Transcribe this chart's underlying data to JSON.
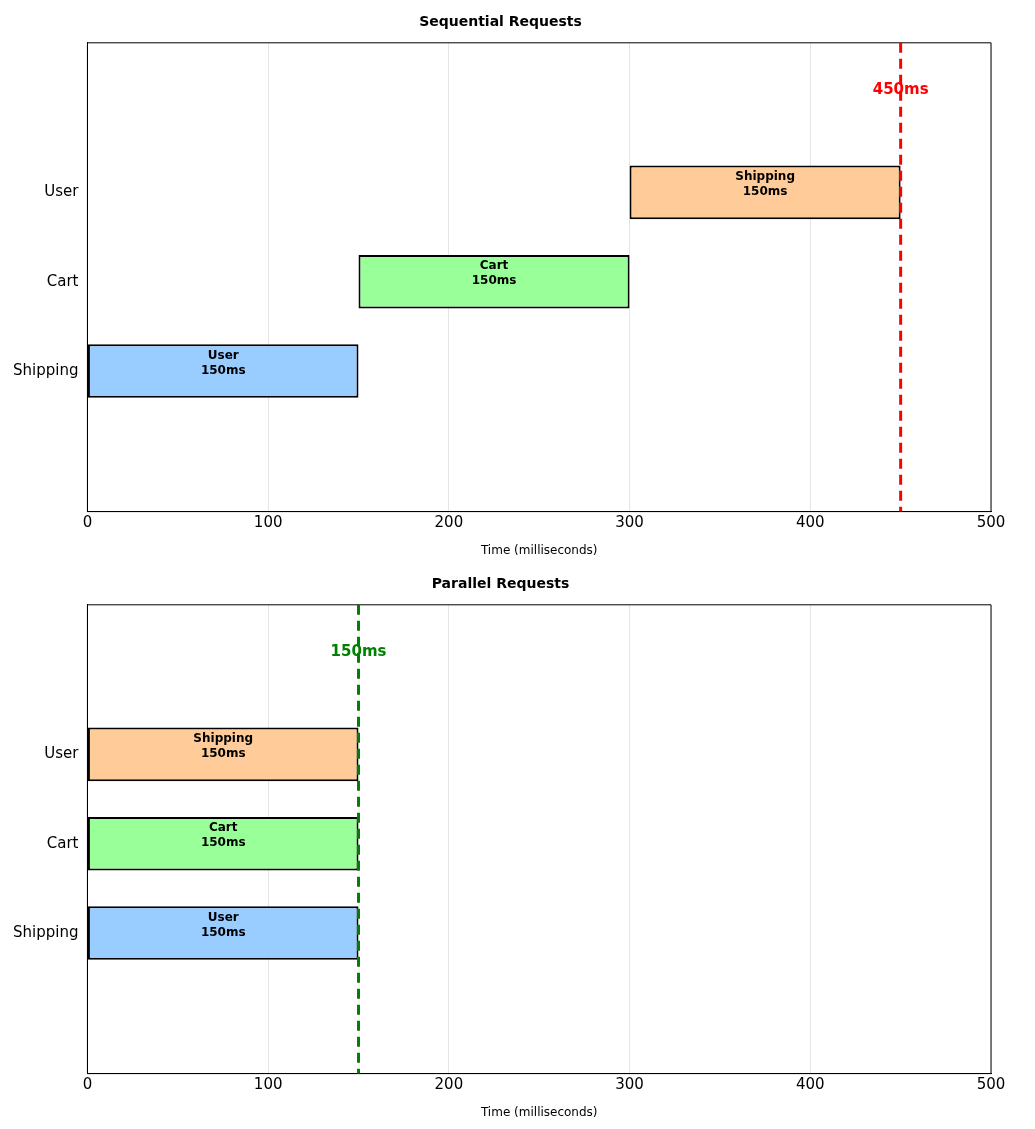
{
  "chart_data": [
    {
      "type": "bar",
      "orientation": "horizontal",
      "title": "Sequential Requests",
      "xlabel": "Time (milliseconds)",
      "categories": [
        "User",
        "Cart",
        "Shipping"
      ],
      "values": [
        150,
        150,
        150
      ],
      "base": [
        300,
        150,
        0
      ],
      "colors": [
        "#ffcc99",
        "#99ff99",
        "#99ccff"
      ],
      "value_labels": [
        "Shipping\n150ms",
        "Cart\n150ms",
        "User\n150ms"
      ],
      "xlim": [
        0,
        500
      ],
      "xticks": [
        0,
        100,
        200,
        300,
        400,
        500
      ],
      "grid": "x",
      "legend": false,
      "ref_lines": [
        {
          "axis": "x",
          "value": 450,
          "label": "450ms",
          "color": "#ff0000",
          "line_style": "dashed"
        }
      ]
    },
    {
      "type": "bar",
      "orientation": "horizontal",
      "title": "Parallel Requests",
      "xlabel": "Time (milliseconds)",
      "categories": [
        "User",
        "Cart",
        "Shipping"
      ],
      "values": [
        150,
        150,
        150
      ],
      "base": [
        0,
        0,
        0
      ],
      "colors": [
        "#ffcc99",
        "#99ff99",
        "#99ccff"
      ],
      "value_labels": [
        "Shipping\n150ms",
        "Cart\n150ms",
        "User\n150ms"
      ],
      "xlim": [
        0,
        500
      ],
      "xticks": [
        0,
        100,
        200,
        300,
        400,
        500
      ],
      "grid": "x",
      "legend": false,
      "ref_lines": [
        {
          "axis": "x",
          "value": 150,
          "label": "150ms",
          "color": "#008000",
          "line_style": "dashed"
        }
      ]
    }
  ]
}
